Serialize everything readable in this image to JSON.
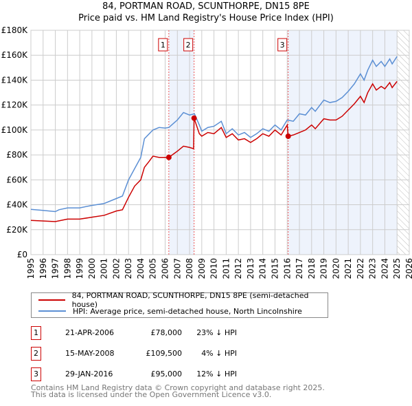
{
  "title_line1": "84, PORTMAN ROAD, SCUNTHORPE, DN15 8PE",
  "title_line2": "Price paid vs. HM Land Registry's House Price Index (HPI)",
  "chart_data": {
    "type": "line",
    "xlim": [
      1995,
      2026
    ],
    "ylim": [
      0,
      180000
    ],
    "x_ticks": [
      "1995",
      "1996",
      "1997",
      "1998",
      "1999",
      "2000",
      "2001",
      "2002",
      "2003",
      "2004",
      "2005",
      "2006",
      "2007",
      "2008",
      "2009",
      "2010",
      "2011",
      "2012",
      "2013",
      "2014",
      "2015",
      "2016",
      "2017",
      "2018",
      "2019",
      "2020",
      "2021",
      "2022",
      "2023",
      "2024",
      "2025",
      "2026"
    ],
    "y_ticks": [
      {
        "v": 0,
        "label": "£0"
      },
      {
        "v": 20000,
        "label": "£20K"
      },
      {
        "v": 40000,
        "label": "£40K"
      },
      {
        "v": 60000,
        "label": "£60K"
      },
      {
        "v": 80000,
        "label": "£80K"
      },
      {
        "v": 100000,
        "label": "£100K"
      },
      {
        "v": 120000,
        "label": "£120K"
      },
      {
        "v": 140000,
        "label": "£140K"
      },
      {
        "v": 160000,
        "label": "£160K"
      },
      {
        "v": 180000,
        "label": "£180K"
      }
    ],
    "grid": true,
    "series": [
      {
        "name": "84, PORTMAN ROAD, SCUNTHORPE, DN15 8PE (semi-detached house)",
        "color": "#cc0000",
        "points": [
          [
            1995,
            27.5
          ],
          [
            1996,
            27
          ],
          [
            1997,
            26.5
          ],
          [
            1998,
            28.5
          ],
          [
            1999,
            28.5
          ],
          [
            2000,
            30
          ],
          [
            2001,
            31.5
          ],
          [
            2002,
            35
          ],
          [
            2002.5,
            36
          ],
          [
            2003,
            46
          ],
          [
            2003.5,
            55
          ],
          [
            2004,
            60
          ],
          [
            2004.3,
            70
          ],
          [
            2004.7,
            75
          ],
          [
            2005,
            79
          ],
          [
            2005.5,
            78
          ],
          [
            2006.3,
            78
          ],
          [
            2007,
            83
          ],
          [
            2007.5,
            87
          ],
          [
            2008,
            86
          ],
          [
            2008.33,
            85
          ],
          [
            2008.37,
            109.5
          ],
          [
            2008.8,
            97
          ],
          [
            2009,
            95
          ],
          [
            2009.5,
            98
          ],
          [
            2010,
            97
          ],
          [
            2010.6,
            102
          ],
          [
            2011,
            94
          ],
          [
            2011.5,
            97
          ],
          [
            2012,
            92
          ],
          [
            2012.5,
            93
          ],
          [
            2013,
            90
          ],
          [
            2013.5,
            93
          ],
          [
            2014,
            97
          ],
          [
            2014.5,
            95
          ],
          [
            2015,
            100
          ],
          [
            2015.5,
            96
          ],
          [
            2016,
            104
          ],
          [
            2016.08,
            95
          ],
          [
            2016.5,
            96
          ],
          [
            2017,
            98
          ],
          [
            2017.5,
            100
          ],
          [
            2018,
            104
          ],
          [
            2018.3,
            101
          ],
          [
            2019,
            109
          ],
          [
            2019.5,
            108
          ],
          [
            2020,
            108
          ],
          [
            2020.5,
            111
          ],
          [
            2021,
            116
          ],
          [
            2021.5,
            121
          ],
          [
            2022,
            127
          ],
          [
            2022.3,
            122
          ],
          [
            2022.6,
            130
          ],
          [
            2023,
            137
          ],
          [
            2023.3,
            132
          ],
          [
            2023.7,
            135
          ],
          [
            2024,
            133
          ],
          [
            2024.4,
            138
          ],
          [
            2024.6,
            134
          ],
          [
            2025,
            139
          ]
        ]
      },
      {
        "name": "HPI: Average price, semi-detached house, North Lincolnshire",
        "color": "#5b8fd4",
        "points": [
          [
            1995,
            36.3
          ],
          [
            1996,
            35.5
          ],
          [
            1997,
            34.5
          ],
          [
            1997.3,
            36
          ],
          [
            1998,
            37.5
          ],
          [
            1999,
            37.5
          ],
          [
            2000,
            39.5
          ],
          [
            2001,
            41
          ],
          [
            2002,
            45
          ],
          [
            2002.5,
            47
          ],
          [
            2003,
            60
          ],
          [
            2003.5,
            69
          ],
          [
            2004,
            78
          ],
          [
            2004.3,
            93
          ],
          [
            2004.7,
            97
          ],
          [
            2005,
            100
          ],
          [
            2005.5,
            102
          ],
          [
            2006,
            101.5
          ],
          [
            2006.3,
            102
          ],
          [
            2007,
            108
          ],
          [
            2007.5,
            114
          ],
          [
            2008,
            112
          ],
          [
            2008.4,
            113
          ],
          [
            2008.8,
            104
          ],
          [
            2009,
            99
          ],
          [
            2009.5,
            102
          ],
          [
            2010,
            103
          ],
          [
            2010.6,
            107
          ],
          [
            2011,
            97
          ],
          [
            2011.5,
            101
          ],
          [
            2012,
            96
          ],
          [
            2012.5,
            98
          ],
          [
            2013,
            94
          ],
          [
            2013.5,
            97
          ],
          [
            2014,
            101
          ],
          [
            2014.5,
            99
          ],
          [
            2015,
            104
          ],
          [
            2015.5,
            100
          ],
          [
            2016,
            108
          ],
          [
            2016.5,
            107
          ],
          [
            2017,
            113
          ],
          [
            2017.5,
            112
          ],
          [
            2018,
            118
          ],
          [
            2018.3,
            115
          ],
          [
            2019,
            124
          ],
          [
            2019.5,
            122
          ],
          [
            2020,
            123
          ],
          [
            2020.5,
            126
          ],
          [
            2021,
            131
          ],
          [
            2021.5,
            137
          ],
          [
            2022,
            145
          ],
          [
            2022.3,
            140
          ],
          [
            2022.6,
            148
          ],
          [
            2023,
            156
          ],
          [
            2023.3,
            151
          ],
          [
            2023.7,
            155
          ],
          [
            2024,
            151
          ],
          [
            2024.4,
            157
          ],
          [
            2024.6,
            153
          ],
          [
            2025,
            159
          ]
        ]
      }
    ],
    "y_unit": "thousands GBP",
    "sales": [
      {
        "id": "1",
        "x": 2006.3,
        "y": 78
      },
      {
        "id": "2",
        "x": 2008.37,
        "y": 109.5
      },
      {
        "id": "3",
        "x": 2016.08,
        "y": 95
      }
    ],
    "shaded_ranges": [
      [
        2006.3,
        2008.37
      ],
      [
        2016.08,
        2025.0
      ]
    ],
    "hatched_from": 2025.0
  },
  "legend": {
    "line1": "84, PORTMAN ROAD, SCUNTHORPE, DN15 8PE (semi-detached house)",
    "line2": "HPI: Average price, semi-detached house, North Lincolnshire"
  },
  "transactions": [
    {
      "num": "1",
      "date": "21-APR-2006",
      "price": "£78,000",
      "hpi": "23% ↓ HPI"
    },
    {
      "num": "2",
      "date": "15-MAY-2008",
      "price": "£109,500",
      "hpi": "4% ↓ HPI"
    },
    {
      "num": "3",
      "date": "29-JAN-2016",
      "price": "£95,000",
      "hpi": "12% ↓ HPI"
    }
  ],
  "footer": {
    "line1": "Contains HM Land Registry data © Crown copyright and database right 2025.",
    "line2": "This data is licensed under the Open Government Licence v3.0."
  }
}
